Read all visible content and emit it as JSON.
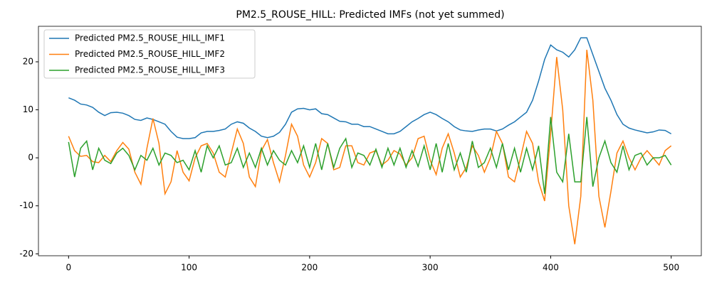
{
  "chart_data": {
    "type": "line",
    "title": "PM2.5_ROUSE_HILL: Predicted IMFs (not yet summed)",
    "x": [
      0,
      5,
      10,
      15,
      20,
      25,
      30,
      35,
      40,
      45,
      50,
      55,
      60,
      65,
      70,
      75,
      80,
      85,
      90,
      95,
      100,
      105,
      110,
      115,
      120,
      125,
      130,
      135,
      140,
      145,
      150,
      155,
      160,
      165,
      170,
      175,
      180,
      185,
      190,
      195,
      200,
      205,
      210,
      215,
      220,
      225,
      230,
      235,
      240,
      245,
      250,
      255,
      260,
      265,
      270,
      275,
      280,
      285,
      290,
      295,
      300,
      305,
      310,
      315,
      320,
      325,
      330,
      335,
      340,
      345,
      350,
      355,
      360,
      365,
      370,
      375,
      380,
      385,
      390,
      395,
      400,
      405,
      410,
      415,
      420,
      425,
      430,
      435,
      440,
      445,
      450,
      455,
      460,
      465,
      470,
      475,
      480,
      485,
      490,
      495,
      500
    ],
    "series": [
      {
        "name": "Predicted PM2.5_ROUSE_HILL_IMF1",
        "color": "#1f77b4",
        "values": [
          12.5,
          12,
          11.2,
          11,
          10.5,
          9.5,
          8.8,
          9.4,
          9.5,
          9.3,
          8.8,
          8.0,
          7.8,
          8.3,
          8.0,
          7.5,
          7.0,
          5.5,
          4.3,
          4.0,
          4.0,
          4.2,
          5.2,
          5.5,
          5.5,
          5.7,
          6.0,
          7.0,
          7.5,
          7.2,
          6.2,
          5.5,
          4.5,
          4.2,
          4.5,
          5.3,
          7.0,
          9.5,
          10.2,
          10.3,
          10.0,
          10.2,
          9.2,
          9.0,
          8.3,
          7.6,
          7.5,
          7.0,
          7.0,
          6.5,
          6.5,
          6.0,
          5.5,
          5.0,
          5.0,
          5.5,
          6.5,
          7.5,
          8.2,
          9.0,
          9.5,
          9.0,
          8.2,
          7.5,
          6.5,
          5.8,
          5.6,
          5.5,
          5.8,
          6.0,
          6.0,
          5.6,
          6.0,
          6.8,
          7.5,
          8.5,
          9.5,
          12,
          16,
          20.5,
          23.5,
          22.5,
          22,
          21,
          22.5,
          25,
          25,
          21.5,
          18,
          14.5,
          12,
          9,
          7,
          6.2,
          5.8,
          5.5,
          5.2,
          5.4,
          5.8,
          5.7,
          5.0
        ]
      },
      {
        "name": "Predicted PM2.5_ROUSE_HILL_IMF2",
        "color": "#ff7f0e",
        "values": [
          4.5,
          1.5,
          0.3,
          0.5,
          -0.8,
          -1,
          0.5,
          -0.8,
          1.5,
          3.2,
          1.8,
          -3,
          -5.5,
          2,
          8.2,
          3,
          -7.5,
          -5,
          1.5,
          -3,
          -4.8,
          0,
          2.5,
          3,
          1,
          -3,
          -4,
          1,
          6,
          3,
          -4,
          -6,
          1.5,
          3.8,
          -1,
          -5,
          0.5,
          7,
          4.5,
          -1.5,
          -4,
          -1,
          4,
          3,
          -2.5,
          -2,
          2.5,
          2.5,
          -1,
          -1.5,
          1,
          1.5,
          -1.5,
          -0.5,
          1.5,
          0.8,
          -1.5,
          0,
          4,
          4.5,
          -0.5,
          -3.5,
          2,
          5,
          1,
          -4,
          -2,
          2.5,
          0.5,
          -3,
          0,
          5.5,
          3,
          -4,
          -5,
          0,
          5.5,
          3,
          -5,
          -9,
          5,
          21,
          10,
          -10,
          -18,
          -8,
          22.5,
          12,
          -8,
          -14.5,
          -7,
          1,
          3.5,
          0,
          -2.5,
          0,
          1.5,
          0,
          -1.5,
          1.5,
          2.5
        ]
      },
      {
        "name": "Predicted PM2.5_ROUSE_HILL_IMF3",
        "color": "#2ca02c",
        "values": [
          3.3,
          -4,
          2,
          3.5,
          -2.5,
          2,
          -0.5,
          -1.2,
          1,
          2,
          0.5,
          -2.5,
          0.5,
          -0.5,
          2,
          -1.5,
          1,
          0.5,
          -1,
          -0.5,
          -2.5,
          1.5,
          -3,
          2.5,
          0,
          2.5,
          -1.5,
          -1,
          2,
          -2,
          1,
          -2,
          2,
          -1.5,
          1.5,
          -0.5,
          -1.5,
          1.5,
          -1,
          2.5,
          -2,
          3,
          -2.5,
          3,
          -2,
          2,
          4,
          -2,
          1,
          0.5,
          -1.5,
          1.8,
          -2,
          2,
          -1.5,
          2,
          -2,
          1.5,
          -1.8,
          2.5,
          -2.5,
          3,
          -3,
          3,
          -2.5,
          1,
          -3,
          3.5,
          -2,
          -1,
          2,
          -2,
          3,
          -2.5,
          2,
          -3,
          2,
          -2.5,
          2.5,
          -7.5,
          8.5,
          -3,
          -5,
          5,
          -5,
          -5,
          8.5,
          -6,
          0,
          3.5,
          -1,
          -3,
          2.5,
          -2.5,
          0.5,
          1,
          -1.5,
          0,
          0,
          0.5,
          -1.5
        ]
      }
    ],
    "xlim": [
      -25,
      525
    ],
    "ylim": [
      -20.4,
      27.4
    ],
    "xticks": [
      0,
      100,
      200,
      300,
      400,
      500
    ],
    "yticks": [
      -20,
      -10,
      0,
      10,
      20
    ],
    "legend": "upper left"
  }
}
